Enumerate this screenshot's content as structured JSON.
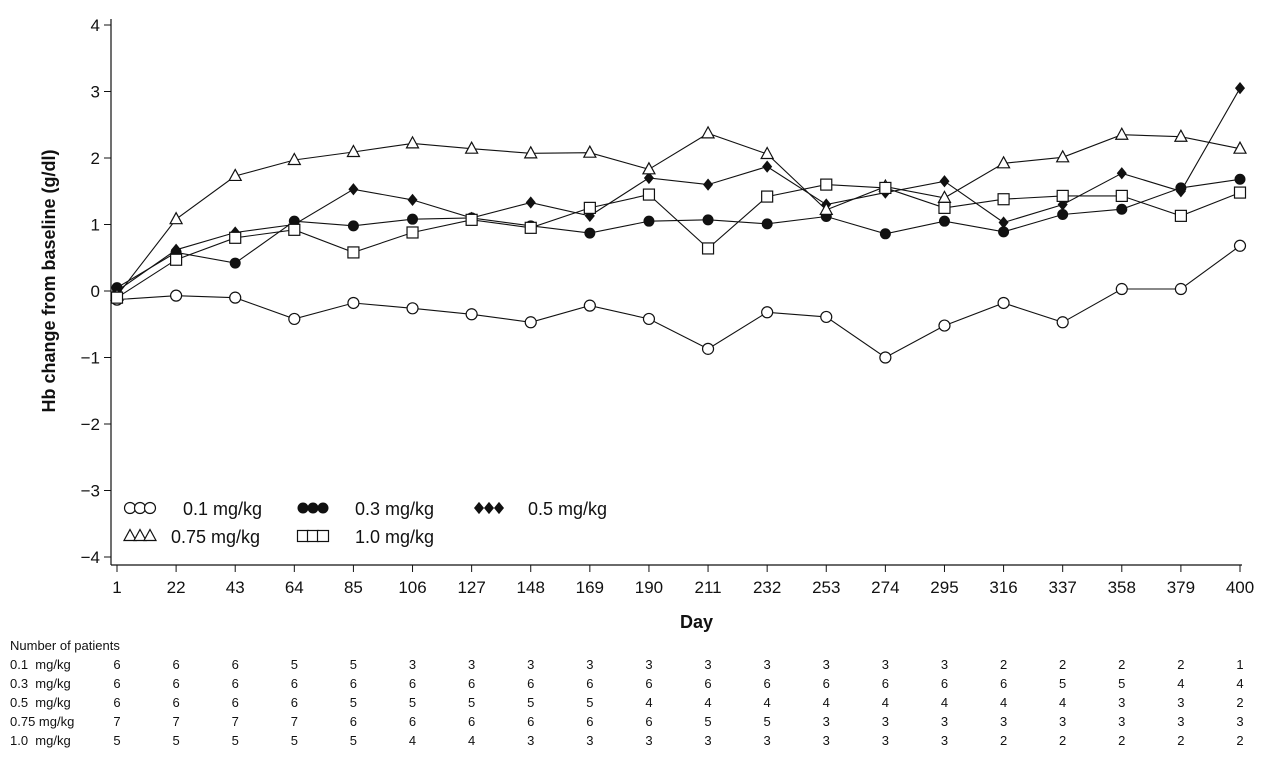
{
  "chart_data": {
    "type": "line",
    "title": "",
    "xlabel": "Day",
    "ylabel": "Hb change from baseline (g/dl)",
    "x": [
      1,
      22,
      43,
      64,
      85,
      106,
      127,
      148,
      169,
      190,
      211,
      232,
      253,
      274,
      295,
      316,
      337,
      358,
      379,
      400
    ],
    "x_tick_labels": [
      "1",
      "22",
      "43",
      "64",
      "85",
      "106",
      "127",
      "148",
      "169",
      "190",
      "211",
      "232",
      "253",
      "274",
      "295",
      "316",
      "337",
      "358",
      "379",
      "400"
    ],
    "ylim": [
      -4,
      4
    ],
    "y_ticks": [
      -4,
      -3,
      -2,
      -1,
      0,
      1,
      2,
      3,
      4
    ],
    "y_tick_labels": [
      "−4",
      "−3",
      "−2",
      "−1",
      "0",
      "1",
      "2",
      "3",
      "4"
    ],
    "grid": false,
    "legend_position": "bottom-left",
    "series": [
      {
        "name": "0.1 mg/kg",
        "marker": "circle-open",
        "values": [
          -0.13,
          -0.07,
          -0.1,
          -0.42,
          -0.18,
          -0.26,
          -0.35,
          -0.47,
          -0.22,
          -0.42,
          -0.87,
          -0.32,
          -0.39,
          -1.0,
          -0.52,
          -0.18,
          -0.47,
          0.03,
          0.03,
          0.68
        ]
      },
      {
        "name": "0.3 mg/kg",
        "marker": "circle-filled",
        "values": [
          0.05,
          0.58,
          0.42,
          1.05,
          0.98,
          1.08,
          1.1,
          0.98,
          0.87,
          1.05,
          1.07,
          1.01,
          1.12,
          0.86,
          1.05,
          0.89,
          1.15,
          1.23,
          1.55,
          1.68
        ]
      },
      {
        "name": "0.5 mg/kg",
        "marker": "diamond-filled",
        "values": [
          0.0,
          0.62,
          0.88,
          1.0,
          1.53,
          1.37,
          1.1,
          1.33,
          1.13,
          1.7,
          1.6,
          1.87,
          1.3,
          1.48,
          1.65,
          1.03,
          1.3,
          1.77,
          1.5,
          3.05
        ]
      },
      {
        "name": "0.75 mg/kg",
        "marker": "triangle-open",
        "values": [
          -0.07,
          1.08,
          1.73,
          1.97,
          2.09,
          2.22,
          2.14,
          2.07,
          2.08,
          1.83,
          2.37,
          2.06,
          1.22,
          1.57,
          1.4,
          1.92,
          2.01,
          2.35,
          2.32,
          2.14
        ]
      },
      {
        "name": "1.0 mg/kg",
        "marker": "square-open",
        "values": [
          -0.1,
          0.47,
          0.8,
          0.92,
          0.58,
          0.88,
          1.07,
          0.95,
          1.25,
          1.45,
          0.64,
          1.42,
          1.6,
          1.55,
          1.25,
          1.38,
          1.43,
          1.43,
          1.13,
          1.48
        ]
      }
    ]
  },
  "patients_table": {
    "heading": "Number of patients",
    "rows": [
      {
        "label": "0.1  mg/kg",
        "counts": [
          "6",
          "6",
          "6",
          "5",
          "5",
          "3",
          "3",
          "3",
          "3",
          "3",
          "3",
          "3",
          "3",
          "3",
          "3",
          "2",
          "2",
          "2",
          "2",
          "1"
        ]
      },
      {
        "label": "0.3  mg/kg",
        "counts": [
          "6",
          "6",
          "6",
          "6",
          "6",
          "6",
          "6",
          "6",
          "6",
          "6",
          "6",
          "6",
          "6",
          "6",
          "6",
          "6",
          "5",
          "5",
          "4",
          "4"
        ]
      },
      {
        "label": "0.5  mg/kg",
        "counts": [
          "6",
          "6",
          "6",
          "6",
          "5",
          "5",
          "5",
          "5",
          "5",
          "4",
          "4",
          "4",
          "4",
          "4",
          "4",
          "4",
          "4",
          "3",
          "3",
          "2"
        ]
      },
      {
        "label": "0.75 mg/kg",
        "counts": [
          "7",
          "7",
          "7",
          "7",
          "6",
          "6",
          "6",
          "6",
          "6",
          "6",
          "5",
          "5",
          "3",
          "3",
          "3",
          "3",
          "3",
          "3",
          "3",
          "3"
        ]
      },
      {
        "label": "1.0  mg/kg",
        "counts": [
          "5",
          "5",
          "5",
          "5",
          "5",
          "4",
          "4",
          "3",
          "3",
          "3",
          "3",
          "3",
          "3",
          "3",
          "3",
          "2",
          "2",
          "2",
          "2",
          "2"
        ]
      }
    ]
  }
}
